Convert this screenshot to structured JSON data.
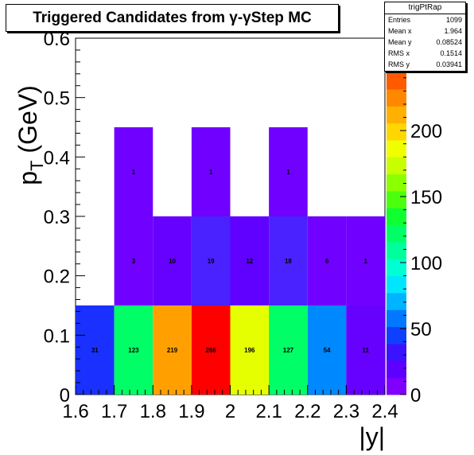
{
  "title": "Triggered Candidates from γ-γStep MC",
  "stats": {
    "name": "trigPtRap",
    "rows": [
      {
        "label": "Entries",
        "value": "1099"
      },
      {
        "label": "Mean x",
        "value": "1.964"
      },
      {
        "label": "Mean y",
        "value": "0.08524"
      },
      {
        "label": "RMS x",
        "value": "0.1514"
      },
      {
        "label": "RMS y",
        "value": "0.03941"
      }
    ]
  },
  "chart_data": {
    "type": "heatmap",
    "title": "Triggered Candidates from γ-γStep MC",
    "xlabel": "|y|",
    "ylabel": "p_T (GeV)",
    "xlim": [
      1.6,
      2.4
    ],
    "ylim": [
      0,
      0.6
    ],
    "x_ticks": [
      "1.6",
      "1.7",
      "1.8",
      "1.9",
      "2",
      "2.1",
      "2.2",
      "2.3",
      "2.4"
    ],
    "x_tick_values": [
      1.6,
      1.7,
      1.8,
      1.9,
      2.0,
      2.1,
      2.2,
      2.3,
      2.4
    ],
    "y_ticks": [
      "0",
      "0.1",
      "0.2",
      "0.3",
      "0.4",
      "0.5",
      "0.6"
    ],
    "y_tick_values": [
      0,
      0.1,
      0.2,
      0.3,
      0.4,
      0.5,
      0.6
    ],
    "z_range": [
      0,
      270
    ],
    "z_ticks": [
      "0",
      "50",
      "100",
      "150",
      "200"
    ],
    "z_tick_values": [
      0,
      50,
      100,
      150,
      200
    ],
    "palette": [
      "#7f00ff",
      "#5d00ff",
      "#3b13ff",
      "#1040ff",
      "#0078ff",
      "#00b4ff",
      "#00e6ff",
      "#00ffd2",
      "#00ff9c",
      "#00ff66",
      "#10ff30",
      "#4cff0c",
      "#8cff00",
      "#c8ff00",
      "#f0ff00",
      "#ffd600",
      "#ffb000",
      "#ff8800",
      "#ff5a00",
      "#ff2a00",
      "#ff0000"
    ],
    "cells": [
      {
        "x": [
          1.6,
          1.7
        ],
        "y": [
          0,
          0.15
        ],
        "count": 31,
        "color": "#1a30ff",
        "label": "31"
      },
      {
        "x": [
          1.7,
          1.8
        ],
        "y": [
          0,
          0.15
        ],
        "count": 123,
        "color": "#00ff66",
        "label": "123"
      },
      {
        "x": [
          1.8,
          1.9
        ],
        "y": [
          0,
          0.15
        ],
        "count": 219,
        "color": "#ffa000",
        "label": "219"
      },
      {
        "x": [
          1.9,
          2.0
        ],
        "y": [
          0,
          0.15
        ],
        "count": 266,
        "color": "#ff0000",
        "label": "266"
      },
      {
        "x": [
          2.0,
          2.1
        ],
        "y": [
          0,
          0.15
        ],
        "count": 196,
        "color": "#e6ff00",
        "label": "196"
      },
      {
        "x": [
          2.1,
          2.2
        ],
        "y": [
          0,
          0.15
        ],
        "count": 127,
        "color": "#00ff66",
        "label": "127"
      },
      {
        "x": [
          2.2,
          2.3
        ],
        "y": [
          0,
          0.15
        ],
        "count": 54,
        "color": "#0088ff",
        "label": "54"
      },
      {
        "x": [
          2.3,
          2.4
        ],
        "y": [
          0,
          0.15
        ],
        "count": 11,
        "color": "#6600ff",
        "label": "11"
      },
      {
        "x": [
          1.7,
          1.8
        ],
        "y": [
          0.15,
          0.3
        ],
        "count": 3,
        "color": "#7000ff",
        "label": "3"
      },
      {
        "x": [
          1.8,
          1.9
        ],
        "y": [
          0.15,
          0.3
        ],
        "count": 10,
        "color": "#6600ff",
        "label": "10"
      },
      {
        "x": [
          1.9,
          2.0
        ],
        "y": [
          0.15,
          0.3
        ],
        "count": 19,
        "color": "#4a22ff",
        "label": "19"
      },
      {
        "x": [
          2.0,
          2.1
        ],
        "y": [
          0.15,
          0.3
        ],
        "count": 12,
        "color": "#6000ff",
        "label": "12"
      },
      {
        "x": [
          2.1,
          2.2
        ],
        "y": [
          0.15,
          0.3
        ],
        "count": 18,
        "color": "#4a22ff",
        "label": "18"
      },
      {
        "x": [
          2.2,
          2.3
        ],
        "y": [
          0.15,
          0.3
        ],
        "count": 6,
        "color": "#7000ff",
        "label": "6"
      },
      {
        "x": [
          2.3,
          2.4
        ],
        "y": [
          0.15,
          0.3
        ],
        "count": 1,
        "color": "#7000ff",
        "label": "1"
      },
      {
        "x": [
          1.7,
          1.8
        ],
        "y": [
          0.3,
          0.45
        ],
        "count": 1,
        "color": "#7000ff",
        "label": "1"
      },
      {
        "x": [
          1.9,
          2.0
        ],
        "y": [
          0.3,
          0.45
        ],
        "count": 1,
        "color": "#7000ff",
        "label": "1"
      },
      {
        "x": [
          2.1,
          2.2
        ],
        "y": [
          0.3,
          0.45
        ],
        "count": 1,
        "color": "#7000ff",
        "label": "1"
      }
    ],
    "grid": false,
    "legend": "color scale on the right"
  }
}
